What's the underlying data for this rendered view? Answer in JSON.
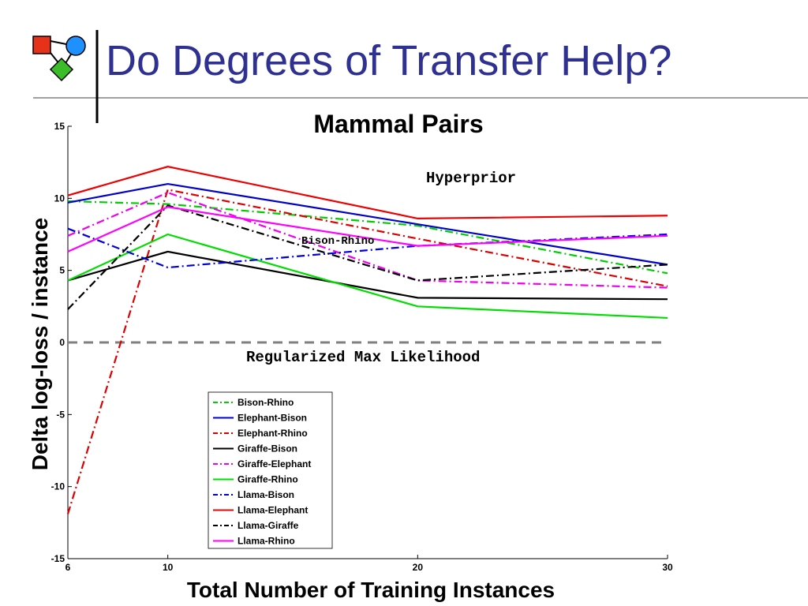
{
  "slide": {
    "title": "Do Degrees of Transfer Help?"
  },
  "chart_data": {
    "type": "line",
    "title": "Mammal Pairs",
    "xlabel": "Total Number of Training Instances",
    "ylabel": "Delta log-loss / instance",
    "x": [
      6,
      10,
      20,
      30
    ],
    "xlim": [
      6,
      30
    ],
    "ylim": [
      -15,
      15
    ],
    "xticks": [
      6,
      10,
      20,
      30
    ],
    "yticks": [
      15,
      10,
      5,
      0,
      -5,
      -10,
      -15
    ],
    "grid": false,
    "legend_position": "lower-center",
    "series": [
      {
        "name": "Bison-Rhino",
        "values": [
          9.8,
          9.6,
          8.1,
          4.8
        ],
        "color": "#00cc00",
        "dash": "dashdot"
      },
      {
        "name": "Elephant-Bison",
        "values": [
          9.7,
          11.0,
          8.2,
          5.4
        ],
        "color": "#0000cc",
        "dash": "solid"
      },
      {
        "name": "Elephant-Rhino",
        "values": [
          -11.9,
          10.6,
          7.2,
          3.9
        ],
        "color": "#dd0000",
        "dash": "dashdot"
      },
      {
        "name": "Giraffe-Bison",
        "values": [
          4.3,
          6.3,
          3.1,
          3.0
        ],
        "color": "#000000",
        "dash": "solid"
      },
      {
        "name": "Giraffe-Elephant",
        "values": [
          7.4,
          10.4,
          4.3,
          3.8
        ],
        "color": "#ee00ee",
        "dash": "dashdot"
      },
      {
        "name": "Giraffe-Rhino",
        "values": [
          4.3,
          7.5,
          2.5,
          1.7
        ],
        "color": "#00dd00",
        "dash": "solid"
      },
      {
        "name": "Llama-Bison",
        "values": [
          7.9,
          5.2,
          6.7,
          7.5
        ],
        "color": "#0000dd",
        "dash": "dashdot"
      },
      {
        "name": "Llama-Elephant",
        "values": [
          10.2,
          12.2,
          8.6,
          8.8
        ],
        "color": "#ee0000",
        "dash": "solid"
      },
      {
        "name": "Llama-Giraffe",
        "values": [
          2.3,
          9.5,
          4.3,
          5.4
        ],
        "color": "#000000",
        "dash": "dashdot"
      },
      {
        "name": "Llama-Rhino",
        "values": [
          6.3,
          9.4,
          6.7,
          7.4
        ],
        "color": "#ff00ff",
        "dash": "solid"
      }
    ],
    "reference_line": {
      "label": "Regularized Max Likelihood",
      "value": 0,
      "color": "#808080"
    },
    "annotations": [
      {
        "text": "Hyperprior"
      },
      {
        "text": "Bison-Rhino"
      }
    ]
  }
}
